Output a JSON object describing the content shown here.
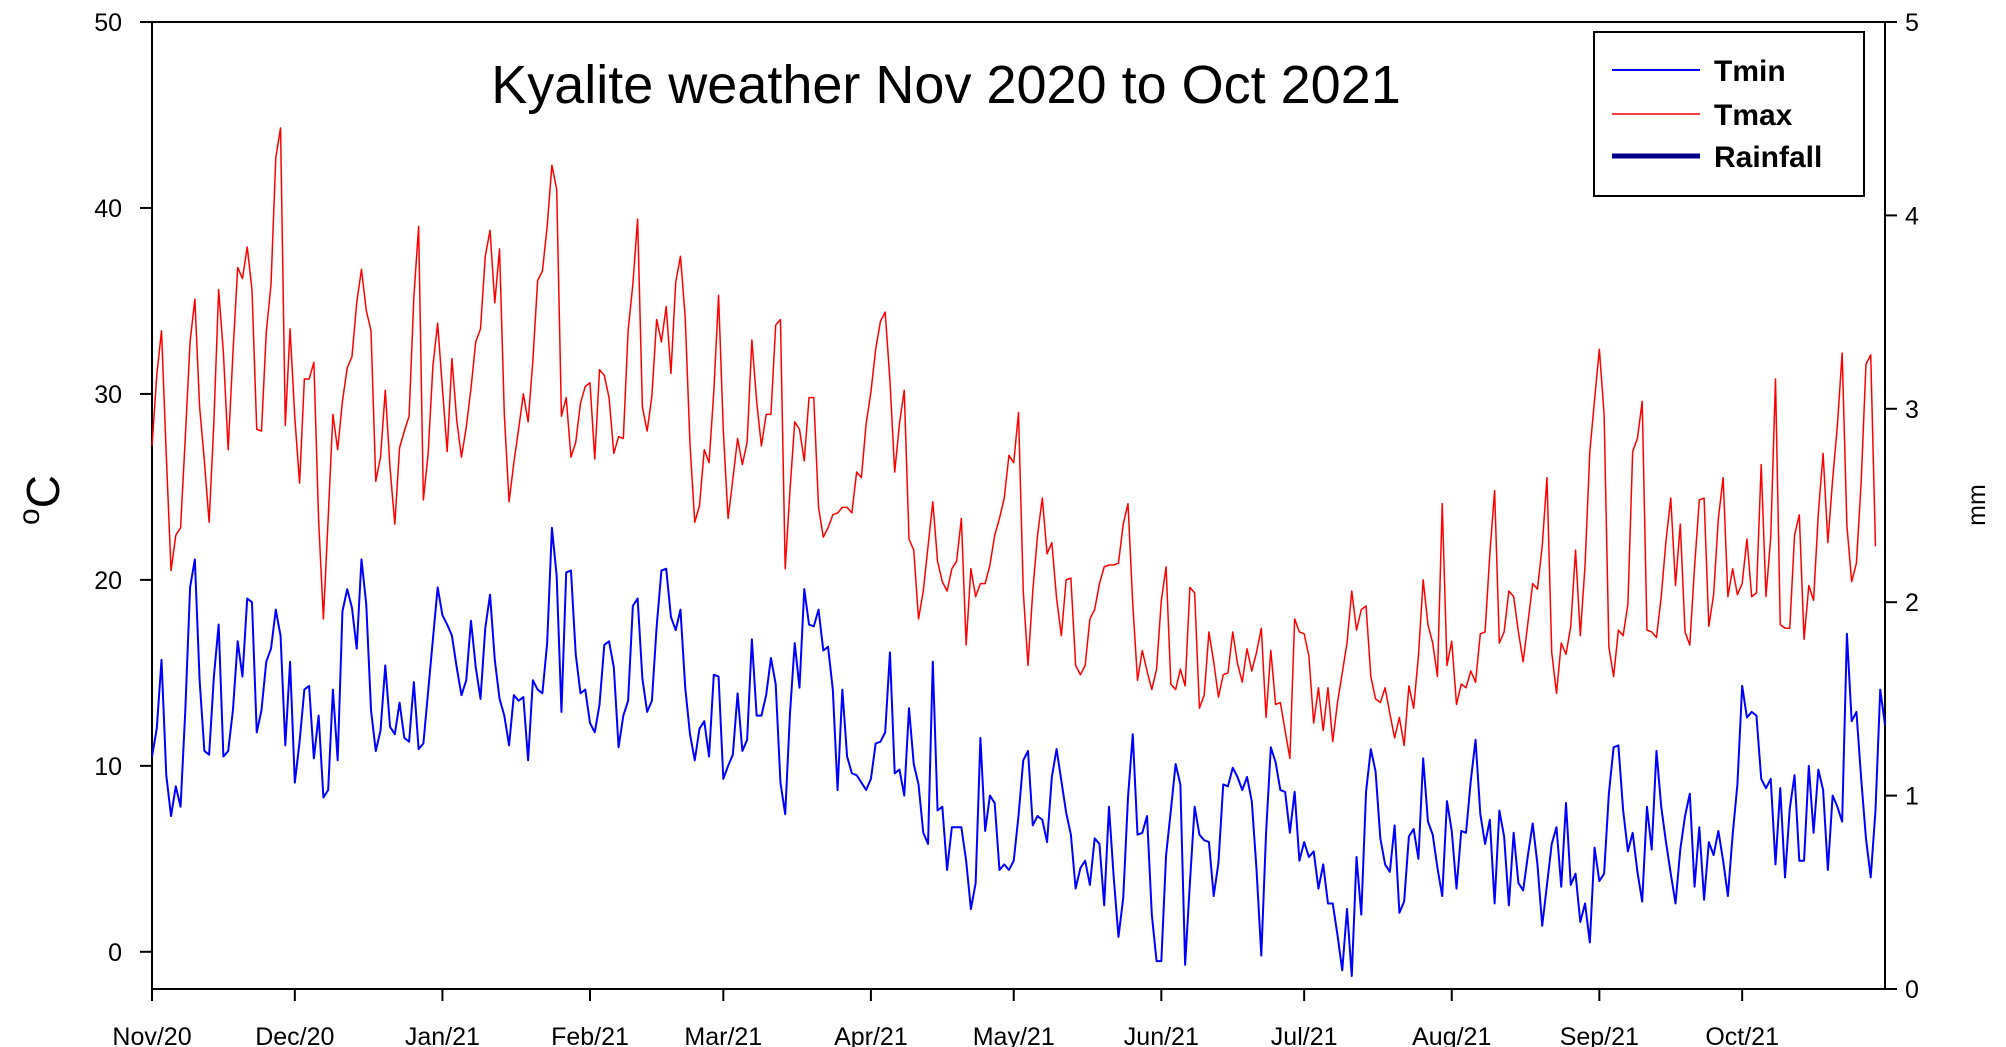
{
  "chart_data": {
    "type": "line",
    "title": "Kyalite weather Nov 2020 to Oct 2021",
    "ylabel_sup": "o",
    "ylabel_main": "C",
    "y2label": "mm",
    "ylim": [
      -2,
      50
    ],
    "y2lim": [
      0,
      5
    ],
    "yticks": [
      0,
      10,
      20,
      30,
      40,
      50
    ],
    "y2ticks": [
      0,
      1,
      2,
      3,
      4,
      5
    ],
    "xlim": [
      "2020-11-01",
      "2021-10-31"
    ],
    "x_tick_labels": [
      "Nov/20",
      "Dec/20",
      "Jan/21",
      "Feb/21",
      "Mar/21",
      "Apr/21",
      "May/21",
      "Jun/21",
      "Jul/21",
      "Aug/21",
      "Sep/21",
      "Oct/21"
    ],
    "legend_position": "top-right",
    "grid": false,
    "series": [
      {
        "name": "Tmin",
        "color": "#0000ff",
        "values": [
          10.5,
          12,
          15.7,
          9.5,
          7.3,
          8.9,
          7.8,
          13,
          19.6,
          21.1,
          14.6,
          10.8,
          10.6,
          14.8,
          17.6,
          10.5,
          10.8,
          13,
          16.7,
          14.8,
          19,
          18.8,
          11.8,
          13,
          15.6,
          16.3,
          18.4,
          17,
          11.1,
          15.6,
          9.1,
          11.3,
          14.1,
          14.3,
          10.4,
          12.7,
          8.3,
          8.7,
          14.1,
          10.3,
          18.3,
          19.5,
          18.5,
          16.3,
          21.1,
          18.7,
          13,
          10.8,
          11.9,
          15.4,
          12.1,
          11.7,
          13.4,
          11.5,
          11.3,
          14.5,
          10.9,
          11.2,
          14,
          16.8,
          19.6,
          18.1,
          17.6,
          17,
          15.3,
          13.8,
          14.6,
          17.8,
          15.3,
          13.6,
          17.4,
          19.2,
          15.7,
          13.6,
          12.7,
          11.1,
          13.8,
          13.5,
          13.7,
          10.3,
          14.6,
          14.1,
          13.9,
          16.6,
          22.8,
          20.2,
          12.9,
          20.4,
          20.5,
          16,
          13.9,
          14.1,
          12.3,
          11.8,
          13.3,
          16.5,
          16.7,
          15.3,
          11,
          12.7,
          13.5,
          18.6,
          19,
          14.7,
          12.9,
          13.5,
          17.5,
          20.5,
          20.6,
          18,
          17.3,
          18.4,
          14.2,
          11.7,
          10.3,
          12,
          12.4,
          10.5,
          14.9,
          14.8,
          9.3,
          10,
          10.6,
          13.9,
          10.8,
          11.4,
          16.8,
          12.7,
          12.7,
          13.8,
          15.8,
          14.4,
          9.1,
          7.4,
          12.8,
          16.6,
          14.2,
          19.5,
          17.6,
          17.5,
          18.4,
          16.2,
          16.4,
          14.1,
          8.7,
          14.1,
          10.5,
          9.6,
          9.5,
          9.1,
          8.7,
          9.3,
          11.2,
          11.3,
          11.8,
          16.1,
          9.6,
          9.8,
          8.4,
          13.1,
          10.1,
          9,
          6.4,
          5.8,
          15.6,
          7.6,
          7.8,
          4.4,
          6.7,
          6.7,
          6.7,
          4.9,
          2.3,
          3.7,
          11.5,
          6.5,
          8.4,
          8,
          4.4,
          4.7,
          4.4,
          4.9,
          7.3,
          10.3,
          10.8,
          6.8,
          7.3,
          7.1,
          5.9,
          9.4,
          10.9,
          9.2,
          7.5,
          6.3,
          3.4,
          4.5,
          4.9,
          3.6,
          6.1,
          5.8,
          2.5,
          7.8,
          4,
          0.8,
          2.9,
          8.3,
          11.7,
          6.3,
          6.4,
          7.3,
          2,
          -0.5,
          -0.5,
          5.2,
          7.6,
          10.1,
          9,
          -0.7,
          3.7,
          7.8,
          6.3,
          6,
          5.9,
          3,
          4.8,
          9,
          8.9,
          9.9,
          9.4,
          8.7,
          9.4,
          8.1,
          4.4,
          -0.2,
          6.4,
          11,
          10.2,
          8.7,
          8.6,
          6.4,
          8.6,
          4.9,
          5.9,
          5.1,
          5.4,
          3.4,
          4.7,
          2.6,
          2.6,
          0.9,
          -1,
          2.3,
          -1.3,
          5.1,
          2,
          8.6,
          10.9,
          9.7,
          6.1,
          4.7,
          4.3,
          6.8,
          2.1,
          2.7,
          6.2,
          6.6,
          5,
          10.4,
          7,
          6.3,
          4.5,
          3,
          8.1,
          6.5,
          3.4,
          6.5,
          6.4,
          9.2,
          11.4,
          7.4,
          5.8,
          7.1,
          2.6,
          7.6,
          6.2,
          2.5,
          6.4,
          3.7,
          3.3,
          5.2,
          6.9,
          4.7,
          1.4,
          3.6,
          5.8,
          6.7,
          3.5,
          8,
          3.6,
          4.2,
          1.6,
          2.6,
          0.5,
          5.6,
          3.8,
          4.2,
          8.5,
          11,
          11.1,
          7.6,
          5.4,
          6.4,
          4.3,
          2.7,
          7.8,
          5.5,
          10.8,
          7.8,
          5.9,
          4.2,
          2.6,
          5.5,
          7.3,
          8.5,
          3.5,
          6.7,
          2.8,
          5.9,
          5.2,
          6.5,
          4.9,
          3,
          6.3,
          9,
          14.3,
          12.6,
          12.9,
          12.7,
          9.3,
          8.8,
          9.3,
          4.7,
          8.8,
          4,
          7.7,
          9.5,
          4.9,
          4.9,
          10,
          6.4,
          9.8,
          8.7,
          4.4,
          8.4,
          7.8,
          7,
          17.1,
          12.4,
          12.9,
          9.3,
          6.1,
          4,
          7.6,
          14.1,
          12.2
        ]
      },
      {
        "name": "Tmax",
        "color": "#ff0000",
        "values": [
          27.2,
          31,
          33.4,
          26.7,
          20.5,
          22.4,
          22.8,
          27.7,
          32.8,
          35.1,
          29.3,
          26.4,
          23.1,
          28.5,
          35.6,
          32.2,
          27,
          32.2,
          36.8,
          36.2,
          37.9,
          35.6,
          28.1,
          28,
          33.3,
          35.9,
          42.7,
          44.3,
          28.3,
          33.5,
          28.7,
          25.2,
          30.8,
          30.8,
          31.7,
          23.2,
          17.9,
          23.3,
          28.9,
          27,
          29.6,
          31.4,
          32,
          34.9,
          36.7,
          34.5,
          33.4,
          25.3,
          26.6,
          30.2,
          26,
          23,
          27.1,
          28,
          28.8,
          35.2,
          39,
          24.3,
          26.8,
          31.5,
          33.8,
          30.3,
          26.9,
          31.9,
          28.6,
          26.6,
          28.2,
          30.3,
          32.8,
          33.5,
          37.4,
          38.8,
          34.9,
          37.8,
          28.9,
          24.2,
          26.3,
          28.1,
          30,
          28.5,
          31.8,
          36.1,
          36.6,
          39,
          42.3,
          41,
          28.8,
          29.8,
          26.6,
          27.4,
          29.5,
          30.4,
          30.6,
          26.5,
          31.3,
          31,
          29.8,
          26.8,
          27.7,
          27.6,
          33.4,
          35.9,
          39.4,
          29.3,
          28,
          29.9,
          34,
          32.8,
          34.7,
          31.1,
          36,
          37.4,
          34.1,
          27.3,
          23.1,
          24,
          27,
          26.3,
          30.1,
          35.3,
          28,
          23.3,
          25.4,
          27.6,
          26.2,
          27.4,
          32.9,
          29.6,
          27.2,
          28.9,
          28.9,
          33.7,
          34,
          20.6,
          24.8,
          28.5,
          28.1,
          26.4,
          29.8,
          29.8,
          23.9,
          22.3,
          22.8,
          23.5,
          23.6,
          23.9,
          23.9,
          23.6,
          25.8,
          25.5,
          28.4,
          30.1,
          32.4,
          33.9,
          34.4,
          30.7,
          25.8,
          28.4,
          30.2,
          22.2,
          21.6,
          17.9,
          19.4,
          21.8,
          24.2,
          21,
          19.9,
          19.4,
          20.6,
          21,
          23.3,
          16.5,
          20.6,
          19.1,
          19.8,
          19.8,
          20.8,
          22.4,
          23.3,
          24.4,
          26.7,
          26.3,
          29,
          19.4,
          15.4,
          19.4,
          22.4,
          24.4,
          21.4,
          22,
          19,
          17,
          20,
          20.1,
          15.4,
          14.9,
          15.4,
          17.9,
          18.4,
          19.8,
          20.7,
          20.8,
          20.8,
          20.9,
          23,
          24.1,
          18.7,
          14.6,
          16.2,
          15.1,
          14.1,
          15.2,
          18.9,
          20.7,
          14.4,
          14.1,
          15.2,
          14.3,
          19.6,
          19.3,
          13.1,
          13.8,
          17.2,
          15.6,
          13.7,
          14.9,
          15,
          17.2,
          15.5,
          14.5,
          16.3,
          15.1,
          16.1,
          17.4,
          12.6,
          16.2,
          13.3,
          13.4,
          11.9,
          10.4,
          17.9,
          17.2,
          17.1,
          15.9,
          12.3,
          14.2,
          11.9,
          14.2,
          11.3,
          13.4,
          15,
          16.6,
          19.4,
          17.3,
          18.4,
          18.6,
          14.8,
          13.6,
          13.4,
          14.2,
          12.8,
          11.5,
          12.6,
          11.1,
          14.3,
          13.1,
          15.9,
          20,
          17.6,
          16.6,
          14.8,
          24.1,
          15.4,
          16.7,
          13.3,
          14.4,
          14.2,
          15.1,
          14.5,
          17.1,
          17.2,
          21.4,
          24.8,
          16.6,
          17.2,
          19.4,
          19.1,
          17.2,
          15.6,
          17.7,
          19.8,
          19.5,
          21.8,
          25.5,
          16.1,
          13.9,
          16.6,
          16,
          17.5,
          21.6,
          17,
          20.8,
          26.9,
          29.7,
          32.4,
          28.9,
          16.4,
          14.8,
          17.3,
          17,
          18.7,
          26.9,
          27.6,
          29.6,
          17.3,
          17.2,
          16.9,
          19.1,
          22.1,
          24.4,
          19.7,
          23,
          17.2,
          16.5,
          20.7,
          24.3,
          24.4,
          17.5,
          19.2,
          23.3,
          25.5,
          19.1,
          20.6,
          19.2,
          19.8,
          22.2,
          19.1,
          19.3,
          26.2,
          19.1,
          22.3,
          30.8,
          17.6,
          17.4,
          17.4,
          22.4,
          23.5,
          16.8,
          19.7,
          18.9,
          23.6,
          26.8,
          22,
          25.4,
          28.3,
          32.2,
          22.9,
          19.9,
          20.9,
          25.3,
          31.6,
          32.1,
          21.8
        ]
      },
      {
        "name": "Rainfall",
        "color": "#00008b",
        "values": []
      }
    ]
  }
}
